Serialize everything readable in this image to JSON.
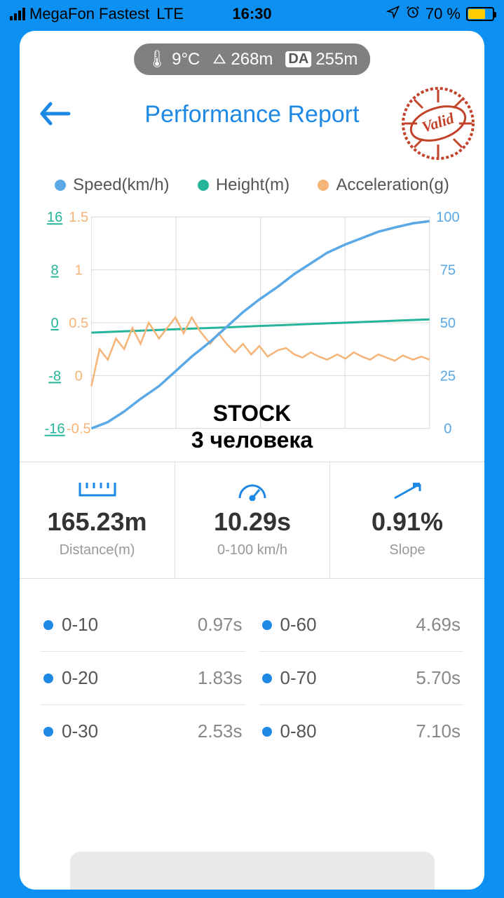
{
  "status": {
    "carrier": "MegaFon Fastest",
    "network": "LTE",
    "time": "16:30",
    "battery_pct": "70 %",
    "battery_fill_pct": 70
  },
  "env": {
    "temp": "9°C",
    "altitude": "268m",
    "density_alt_label": "DA",
    "density_alt": "255m"
  },
  "header": {
    "title": "Performance Report",
    "stamp_text": "Valid",
    "stamp_color": "#c2432a"
  },
  "legend": {
    "speed": {
      "label": "Speed(km/h)",
      "color": "#5aa9e6"
    },
    "height": {
      "label": "Height(m)",
      "color": "#26b59a"
    },
    "accel": {
      "label": "Acceleration(g)",
      "color": "#f5b478"
    }
  },
  "chart": {
    "grid_color": "#d9d9d9",
    "bg_color": "#ffffff",
    "axis_font_size": 20,
    "left1_axis": {
      "color": "#26b59a",
      "ticks": [
        -16,
        -8,
        0,
        8,
        16
      ]
    },
    "left2_axis": {
      "color": "#f5b478",
      "ticks": [
        -0.5,
        0,
        0.5,
        1,
        1.5
      ]
    },
    "right_axis": {
      "color": "#5aa9e6",
      "ticks": [
        0,
        25,
        50,
        75,
        100
      ]
    },
    "x_domain": [
      0,
      165
    ],
    "speed_series": {
      "color": "#5aa9e6",
      "y_range": [
        0,
        100
      ],
      "points": [
        [
          0,
          0
        ],
        [
          8,
          3
        ],
        [
          16,
          8
        ],
        [
          24,
          14
        ],
        [
          33,
          20
        ],
        [
          41,
          27
        ],
        [
          49,
          34
        ],
        [
          58,
          41
        ],
        [
          66,
          48
        ],
        [
          74,
          55
        ],
        [
          82,
          61
        ],
        [
          91,
          67
        ],
        [
          99,
          73
        ],
        [
          107,
          78
        ],
        [
          115,
          83
        ],
        [
          124,
          87
        ],
        [
          132,
          90
        ],
        [
          140,
          93
        ],
        [
          148,
          95
        ],
        [
          157,
          97
        ],
        [
          165,
          98
        ]
      ]
    },
    "height_series": {
      "color": "#26b59a",
      "y_range": [
        -16,
        16
      ],
      "points": [
        [
          0,
          -1.5
        ],
        [
          16,
          -1.3
        ],
        [
          33,
          -1.1
        ],
        [
          49,
          -0.9
        ],
        [
          66,
          -0.7
        ],
        [
          82,
          -0.5
        ],
        [
          99,
          -0.3
        ],
        [
          115,
          -0.1
        ],
        [
          132,
          0.1
        ],
        [
          148,
          0.3
        ],
        [
          165,
          0.5
        ]
      ]
    },
    "accel_series": {
      "color": "#f5b478",
      "y_range": [
        -0.5,
        1.5
      ],
      "points": [
        [
          0,
          -0.1
        ],
        [
          4,
          0.25
        ],
        [
          8,
          0.15
        ],
        [
          12,
          0.35
        ],
        [
          16,
          0.25
        ],
        [
          20,
          0.45
        ],
        [
          24,
          0.3
        ],
        [
          28,
          0.5
        ],
        [
          33,
          0.35
        ],
        [
          37,
          0.45
        ],
        [
          41,
          0.55
        ],
        [
          45,
          0.4
        ],
        [
          49,
          0.55
        ],
        [
          53,
          0.42
        ],
        [
          58,
          0.3
        ],
        [
          62,
          0.4
        ],
        [
          66,
          0.3
        ],
        [
          70,
          0.22
        ],
        [
          74,
          0.3
        ],
        [
          78,
          0.2
        ],
        [
          82,
          0.28
        ],
        [
          86,
          0.18
        ],
        [
          91,
          0.24
        ],
        [
          95,
          0.26
        ],
        [
          99,
          0.2
        ],
        [
          103,
          0.17
        ],
        [
          107,
          0.22
        ],
        [
          111,
          0.18
        ],
        [
          115,
          0.15
        ],
        [
          120,
          0.2
        ],
        [
          124,
          0.16
        ],
        [
          128,
          0.22
        ],
        [
          132,
          0.18
        ],
        [
          136,
          0.15
        ],
        [
          140,
          0.2
        ],
        [
          144,
          0.17
        ],
        [
          148,
          0.14
        ],
        [
          152,
          0.19
        ],
        [
          157,
          0.15
        ],
        [
          161,
          0.18
        ],
        [
          165,
          0.15
        ]
      ]
    },
    "overlay_line1": "STOCK",
    "overlay_line2": "3 человека"
  },
  "metrics": {
    "distance": {
      "value": "165.23m",
      "label": "Distance(m)"
    },
    "time": {
      "value": "10.29s",
      "label": "0-100 km/h"
    },
    "slope": {
      "value": "0.91%",
      "label": "Slope"
    }
  },
  "splits": [
    {
      "label": "0-10",
      "value": "0.97s"
    },
    {
      "label": "0-60",
      "value": "4.69s"
    },
    {
      "label": "0-20",
      "value": "1.83s"
    },
    {
      "label": "0-70",
      "value": "5.70s"
    },
    {
      "label": "0-30",
      "value": "2.53s"
    },
    {
      "label": "0-80",
      "value": "7.10s"
    }
  ],
  "colors": {
    "page_bg": "#0c90f2",
    "card_bg": "#ffffff",
    "accent": "#1e88e5"
  }
}
